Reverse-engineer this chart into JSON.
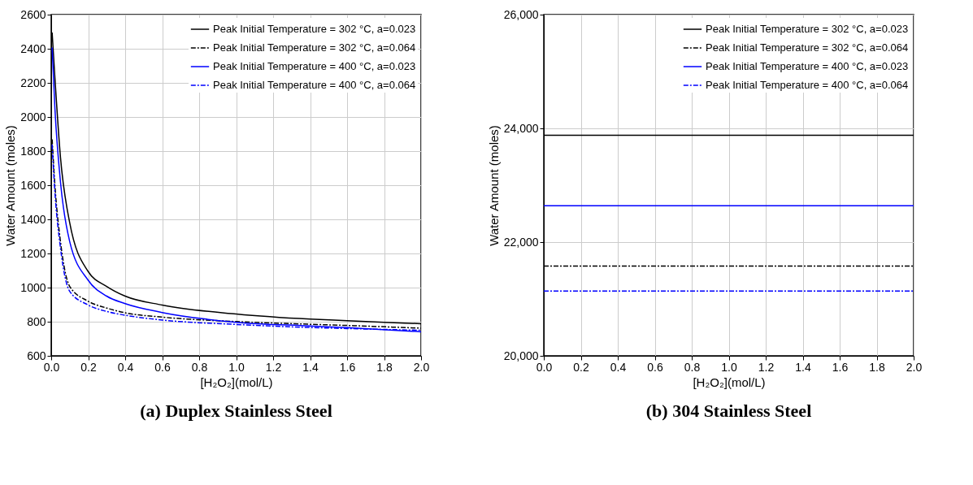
{
  "chart_data": [
    {
      "type": "line",
      "title": "(a)  Duplex Stainless Steel",
      "xlabel": "[H₂O₂](mol/L)",
      "ylabel": "Water Amount (moles)",
      "x": [
        0.005,
        0.02,
        0.05,
        0.1,
        0.2,
        0.3,
        0.4,
        0.6,
        1.0,
        1.4,
        1.6,
        2.0
      ],
      "xlim": [
        0,
        2
      ],
      "xticks": [
        {
          "value": 0,
          "label": "0.0"
        },
        0.2,
        0.4,
        0.6,
        0.8,
        {
          "value": 1,
          "label": "1.0"
        },
        1.2,
        1.4,
        1.6,
        1.8,
        {
          "value": 2,
          "label": "2.0"
        }
      ],
      "ylim": [
        600,
        2600
      ],
      "yticks": [
        600,
        800,
        1000,
        1200,
        1400,
        1600,
        1800,
        2000,
        2200,
        2400,
        2600
      ],
      "grid": true,
      "legend": "top right",
      "series": [
        {
          "name": "Peak Initial Temperature = 302 °C, a=0.023",
          "color": "#000000",
          "line_style": "solid",
          "values": [
            2495,
            2230,
            1765,
            1380,
            1094,
            1007,
            950,
            898,
            845,
            815,
            806,
            788
          ]
        },
        {
          "name": "Peak Initial Temperature = 302 °C, a=0.064",
          "color": "#000000",
          "line_style": "dashed",
          "values": [
            1869,
            1600,
            1270,
            1007,
            920,
            880,
            852,
            827,
            801,
            785,
            778,
            762
          ]
        },
        {
          "name": "Peak Initial Temperature = 400 °C, a=0.023",
          "color": "#0000ff",
          "line_style": "solid",
          "values": [
            2407,
            2050,
            1620,
            1270,
            1043,
            950,
            906,
            854,
            797,
            775,
            765,
            741
          ]
        },
        {
          "name": "Peak Initial Temperature = 400 °C, a=0.064",
          "color": "#0000ff",
          "line_style": "dashed",
          "values": [
            1838,
            1560,
            1233,
            978,
            898,
            860,
            838,
            810,
            784,
            766,
            760,
            750
          ]
        }
      ]
    },
    {
      "type": "line",
      "title": "(b)  304 Stainless Steel",
      "xlabel": "[H₂O₂](mol/L)",
      "ylabel": "Water Amount (moles)",
      "x": [
        0,
        2
      ],
      "xlim": [
        0,
        2
      ],
      "xticks": [
        {
          "value": 0,
          "label": "0.0"
        },
        0.2,
        0.4,
        0.6,
        0.8,
        {
          "value": 1,
          "label": "1.0"
        },
        1.2,
        1.4,
        1.6,
        1.8,
        {
          "value": 2,
          "label": "2.0"
        }
      ],
      "ylim": [
        20000,
        26000
      ],
      "yticks": [
        {
          "value": 20000,
          "label": "20,000"
        },
        {
          "value": 22000,
          "label": "22,000"
        },
        {
          "value": 24000,
          "label": "24,000"
        },
        {
          "value": 26000,
          "label": "26,000"
        }
      ],
      "grid": true,
      "legend": "top right",
      "series": [
        {
          "name": "Peak Initial Temperature = 302 °C, a=0.023",
          "color": "#000000",
          "line_style": "solid",
          "values": [
            23880,
            23880
          ]
        },
        {
          "name": "Peak Initial Temperature = 302 °C, a=0.064",
          "color": "#000000",
          "line_style": "dashed",
          "values": [
            21580,
            21580
          ]
        },
        {
          "name": "Peak Initial Temperature = 400 °C, a=0.023",
          "color": "#0000ff",
          "line_style": "solid",
          "values": [
            22640,
            22640
          ]
        },
        {
          "name": "Peak Initial Temperature = 400 °C, a=0.064",
          "color": "#0000ff",
          "line_style": "dashed",
          "values": [
            21140,
            21140
          ]
        }
      ]
    }
  ]
}
